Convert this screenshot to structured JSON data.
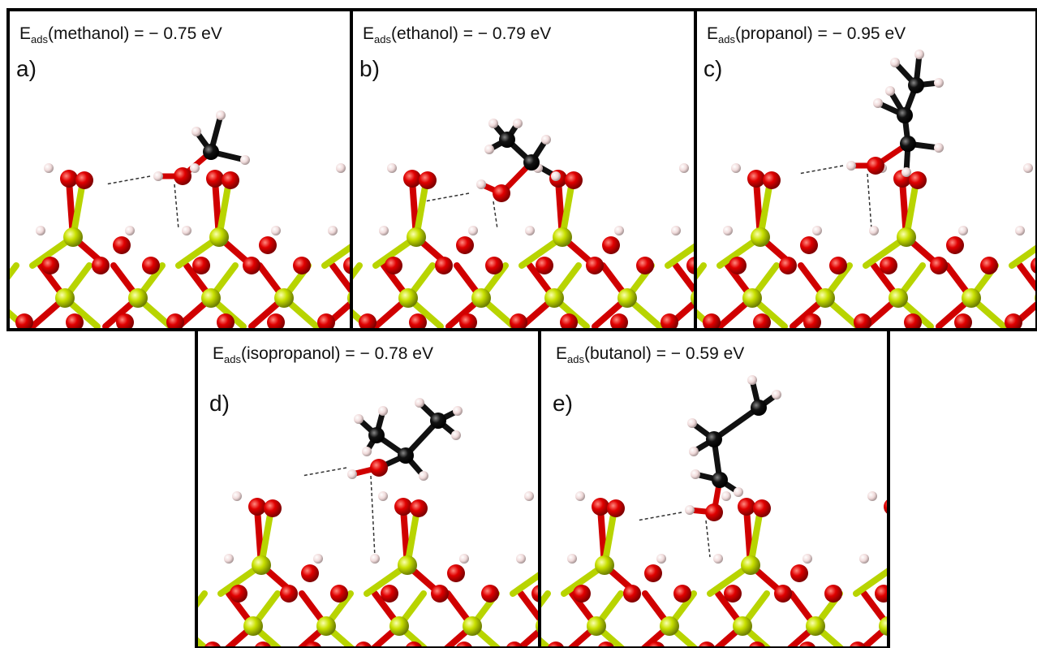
{
  "panels": [
    {
      "label": "a)",
      "symbol": "E",
      "subscript": "ads",
      "text": "(methanol) = − 0.75 eV"
    },
    {
      "label": "b)",
      "symbol": "E",
      "subscript": "ads",
      "text": "(ethanol) = − 0.79 eV"
    },
    {
      "label": "c)",
      "symbol": "E",
      "subscript": "ads",
      "text": "(propanol) = − 0.95 eV"
    },
    {
      "label": "d)",
      "symbol": "E",
      "subscript": "ads",
      "text": "(isopropanol) = − 0.78 eV"
    },
    {
      "label": "e)",
      "symbol": "E",
      "subscript": "ads",
      "text": "(butanol) = − 0.59 eV"
    }
  ]
}
